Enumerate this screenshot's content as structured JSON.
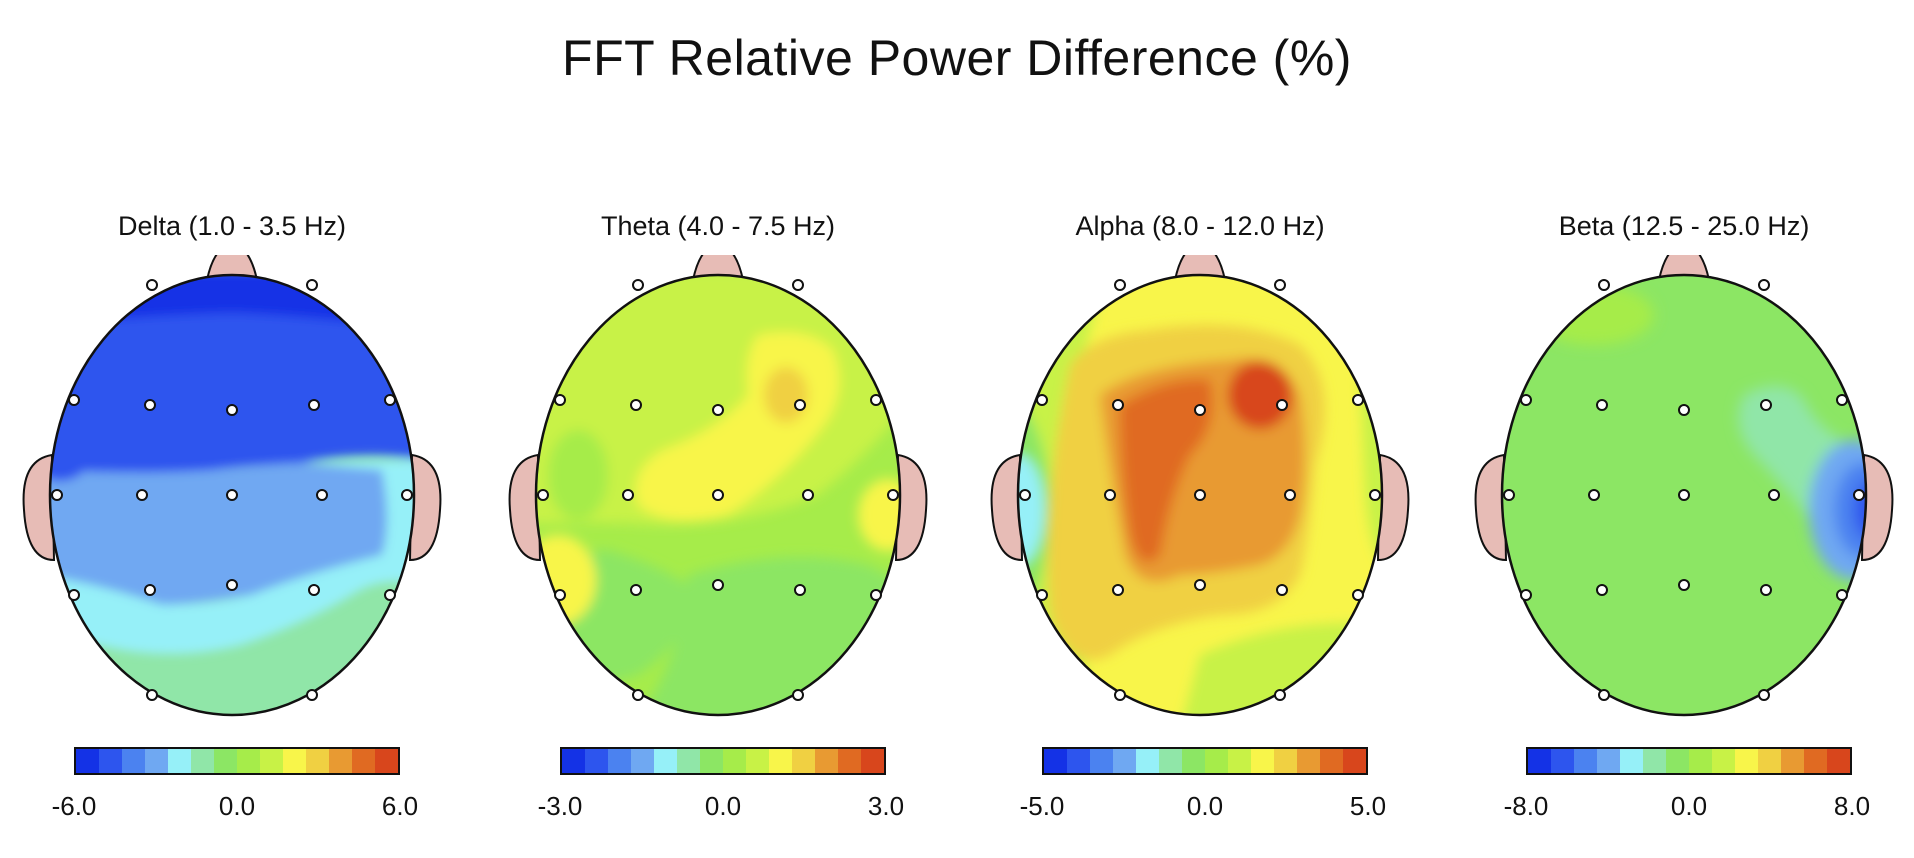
{
  "title": "FFT Relative Power Difference  (%)",
  "colormap": [
    "#1432e6",
    "#2d55ee",
    "#4b82f0",
    "#6fa8f2",
    "#96f0f8",
    "#90e6a8",
    "#8ce664",
    "#a6ec4a",
    "#c8f246",
    "#f8f54a",
    "#f0d042",
    "#e89a32",
    "#e06a22",
    "#d8461c"
  ],
  "colors": {
    "ear": "#e7bcb6",
    "nose": "#e7bcb6",
    "outline": "#111111",
    "electrode": "#ffffff"
  },
  "chart_data": [
    {
      "type": "heatmap",
      "title": "Delta (1.0 - 3.5 Hz)",
      "scale": {
        "min_label": "-6.0",
        "mid_label": "0.0",
        "max_label": "6.0",
        "range": [
          -6,
          6
        ]
      },
      "regions": {
        "frontal": -5.5,
        "frontal_central": -4.5,
        "central": -4.0,
        "right_temporal": -2.5,
        "posterior": -1.5,
        "occipital": -1.5
      }
    },
    {
      "type": "heatmap",
      "title": "Theta (4.0 - 7.5 Hz)",
      "scale": {
        "min_label": "-3.0",
        "mid_label": "0.0",
        "max_label": "3.0",
        "range": [
          -3,
          3
        ]
      },
      "regions": {
        "frontal": 0.3,
        "right_frontal_peak": 1.5,
        "central": 0.8,
        "left_temporal_posterior": 1.0,
        "posterior": 0.0,
        "occipital": 0.0
      }
    },
    {
      "type": "heatmap",
      "title": "Alpha (8.0 - 12.0 Hz)",
      "scale": {
        "min_label": "-5.0",
        "mid_label": "0.0",
        "max_label": "5.0",
        "range": [
          -5,
          5
        ]
      },
      "regions": {
        "right_frontal_peak": 4.8,
        "central": 3.8,
        "surround": 2.0,
        "left_temporal": -1.5,
        "occipital": 0.0
      }
    },
    {
      "type": "heatmap",
      "title": "Beta (12.5 - 25.0 Hz)",
      "scale": {
        "min_label": "-8.0",
        "mid_label": "0.0",
        "max_label": "8.0",
        "range": [
          -8,
          8
        ]
      },
      "regions": {
        "global": 0.0,
        "right_temporal_minimum": -7.0,
        "right_frontal": -2.0
      }
    }
  ]
}
